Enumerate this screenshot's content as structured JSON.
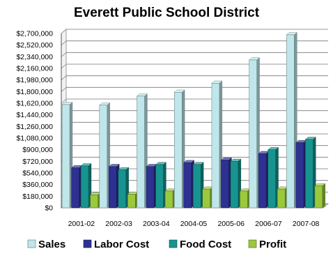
{
  "chart_data": {
    "type": "bar",
    "title": "Everett Public School District",
    "xlabel": "",
    "ylabel": "",
    "categories": [
      "2001-02",
      "2002-03",
      "2003-04",
      "2004-05",
      "2005-06",
      "2006-07",
      "2007-08"
    ],
    "ylim": [
      0,
      2700000
    ],
    "yticks": [
      "$0",
      "$180,000",
      "$360,000",
      "$540,000",
      "$720,000",
      "$900,000",
      "$1,080,000",
      "$1,260,000",
      "$1,440,000",
      "$1,620,000",
      "$1,800,000",
      "$1,980,000",
      "$2,160,000",
      "$2,340,000",
      "$2,520,000",
      "$2,700,000"
    ],
    "grid": true,
    "legend_position": "bottom",
    "series": [
      {
        "name": "Sales",
        "color": "#bfe6ea",
        "values": [
          1600000,
          1590000,
          1730000,
          1790000,
          1930000,
          2290000,
          2680000
        ]
      },
      {
        "name": "Labor Cost",
        "color": "#2e3192",
        "values": [
          620000,
          640000,
          640000,
          700000,
          740000,
          840000,
          1010000
        ]
      },
      {
        "name": "Food Cost",
        "color": "#17948f",
        "values": [
          650000,
          590000,
          670000,
          670000,
          720000,
          900000,
          1060000
        ]
      },
      {
        "name": "Profit",
        "color": "#9bc93c",
        "values": [
          200000,
          210000,
          260000,
          290000,
          260000,
          290000,
          340000
        ]
      }
    ]
  }
}
